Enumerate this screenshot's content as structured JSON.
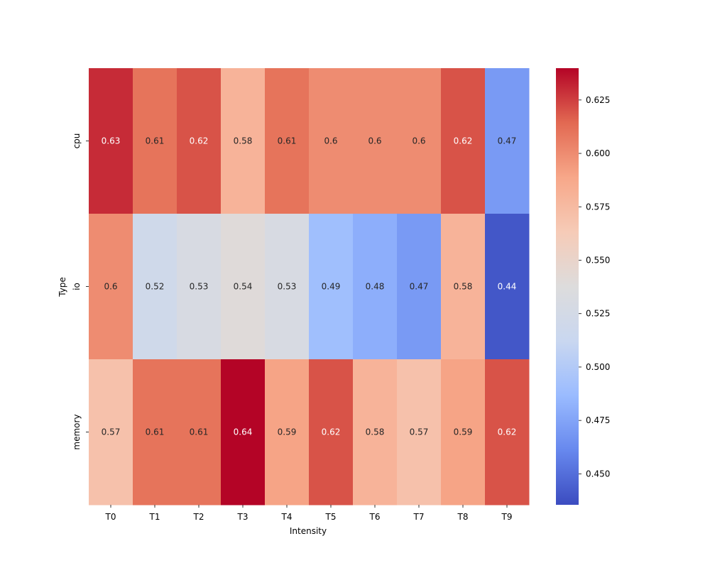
{
  "chart_data": {
    "type": "heatmap",
    "title": "",
    "xlabel": "Intensity",
    "ylabel": "Type",
    "columns": [
      "T0",
      "T1",
      "T2",
      "T3",
      "T4",
      "T5",
      "T6",
      "T7",
      "T8",
      "T9"
    ],
    "rows": [
      "cpu",
      "io",
      "memory"
    ],
    "values": [
      [
        0.63,
        0.61,
        0.62,
        0.58,
        0.61,
        0.6,
        0.6,
        0.6,
        0.62,
        0.47
      ],
      [
        0.6,
        0.52,
        0.53,
        0.54,
        0.53,
        0.49,
        0.48,
        0.47,
        0.58,
        0.44
      ],
      [
        0.57,
        0.61,
        0.61,
        0.64,
        0.59,
        0.62,
        0.58,
        0.57,
        0.59,
        0.62
      ]
    ],
    "value_labels": [
      [
        "0.63",
        "0.61",
        "0.62",
        "0.58",
        "0.61",
        "0.6",
        "0.6",
        "0.6",
        "0.62",
        "0.47"
      ],
      [
        "0.6",
        "0.52",
        "0.53",
        "0.54",
        "0.53",
        "0.49",
        "0.48",
        "0.47",
        "0.58",
        "0.44"
      ],
      [
        "0.57",
        "0.61",
        "0.61",
        "0.64",
        "0.59",
        "0.62",
        "0.58",
        "0.57",
        "0.59",
        "0.62"
      ]
    ],
    "colormap": "coolwarm",
    "colormap_stops": [
      "#3b4cc0",
      "#6788ee",
      "#9abbff",
      "#c9d7f0",
      "#dddcdc",
      "#f6cbb7",
      "#f7a789",
      "#e26952",
      "#b40426"
    ],
    "vmin": 0.4355,
    "vmax": 0.6399,
    "colorbar_ticks": [
      0.45,
      0.475,
      0.5,
      0.525,
      0.55,
      0.575,
      0.6,
      0.625
    ],
    "colorbar_tick_labels": [
      "0.450",
      "0.475",
      "0.500",
      "0.525",
      "0.550",
      "0.575",
      "0.600",
      "0.625"
    ]
  }
}
